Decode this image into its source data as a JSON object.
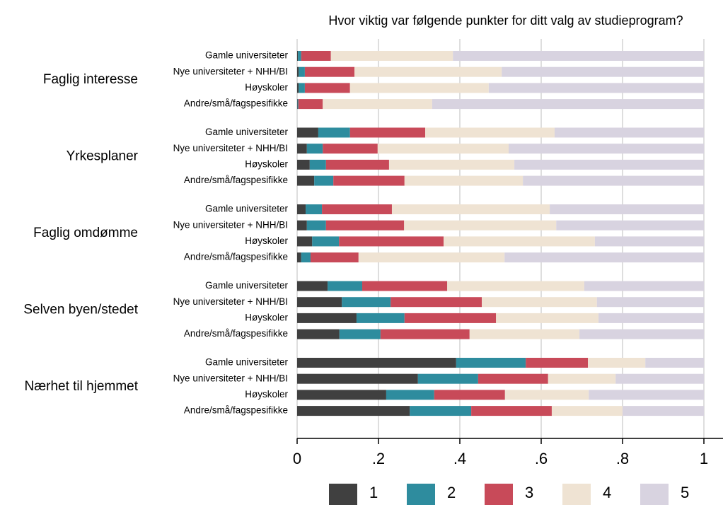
{
  "chart_data": {
    "type": "bar",
    "orientation": "horizontal",
    "stacked": true,
    "title": "Hvor viktig var følgende punkter for ditt valg av studieprogram?",
    "groups": [
      "Faglig interesse",
      "Yrkesplaner",
      "Faglig omdømme",
      "Selven byen/stedet",
      "Nærhet til hjemmet"
    ],
    "categories": [
      "Gamle universiteter",
      "Nye universiteter + NHH/BI",
      "Høyskoler",
      "Andre/små/fagspesifikke"
    ],
    "series": [
      {
        "name": "1",
        "color": "#404040",
        "values": [
          [
            0.002,
            0.004,
            0.004,
            0.001
          ],
          [
            0.052,
            0.024,
            0.031,
            0.042
          ],
          [
            0.021,
            0.024,
            0.037,
            0.01
          ],
          [
            0.075,
            0.11,
            0.146,
            0.104
          ],
          [
            0.391,
            0.297,
            0.219,
            0.277
          ]
        ]
      },
      {
        "name": "2",
        "color": "#2e8c9e",
        "values": [
          [
            0.008,
            0.015,
            0.015,
            0.002
          ],
          [
            0.078,
            0.039,
            0.04,
            0.047
          ],
          [
            0.04,
            0.047,
            0.066,
            0.023
          ],
          [
            0.085,
            0.12,
            0.118,
            0.101
          ],
          [
            0.171,
            0.148,
            0.118,
            0.151
          ]
        ]
      },
      {
        "name": "3",
        "color": "#c84a59",
        "values": [
          [
            0.073,
            0.122,
            0.111,
            0.06
          ],
          [
            0.185,
            0.135,
            0.155,
            0.175
          ],
          [
            0.172,
            0.192,
            0.257,
            0.118
          ],
          [
            0.209,
            0.224,
            0.225,
            0.219
          ],
          [
            0.153,
            0.172,
            0.174,
            0.198
          ]
        ]
      },
      {
        "name": "4",
        "color": "#efe3d3",
        "values": [
          [
            0.3,
            0.362,
            0.341,
            0.269
          ],
          [
            0.318,
            0.322,
            0.308,
            0.291
          ],
          [
            0.388,
            0.374,
            0.372,
            0.359
          ],
          [
            0.337,
            0.283,
            0.252,
            0.27
          ],
          [
            0.141,
            0.166,
            0.206,
            0.174
          ]
        ]
      },
      {
        "name": "5",
        "color": "#d8d3e0",
        "values": [
          [
            0.617,
            0.497,
            0.529,
            0.668
          ],
          [
            0.367,
            0.48,
            0.466,
            0.445
          ],
          [
            0.379,
            0.363,
            0.268,
            0.49
          ],
          [
            0.294,
            0.263,
            0.259,
            0.306
          ],
          [
            0.144,
            0.217,
            0.283,
            0.2
          ]
        ]
      }
    ],
    "xlim": [
      0,
      1
    ],
    "xticks": [
      0,
      {
        "value": 0.2,
        "label": ".2"
      },
      {
        "value": 0.4,
        "label": ".4"
      },
      {
        "value": 0.6,
        "label": ".6"
      },
      {
        "value": 0.8,
        "label": ".8"
      },
      1
    ],
    "grid": true,
    "legend": "bottom"
  }
}
